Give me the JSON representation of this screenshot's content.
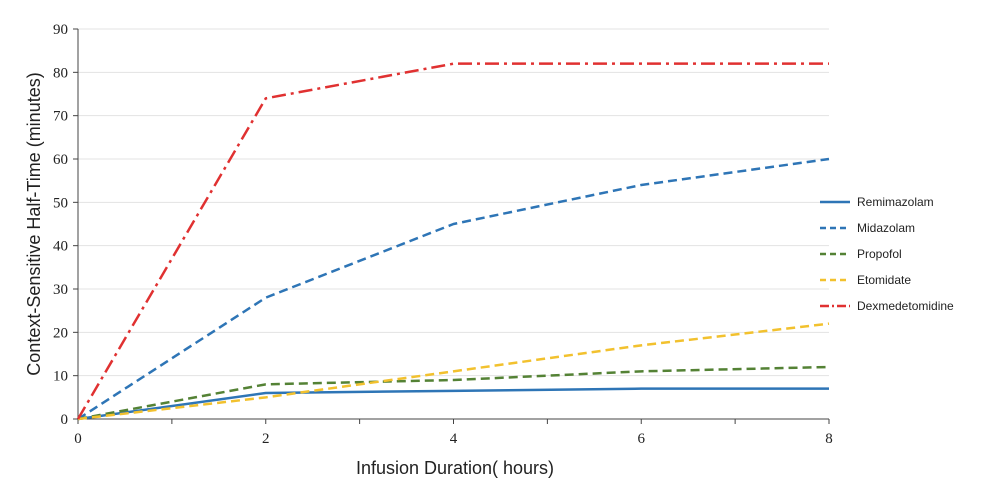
{
  "chart_data": {
    "type": "line",
    "xlabel": "Infusion Duration( hours)",
    "ylabel": "Context-Sensitive Half-Time (minutes)",
    "xlim": [
      0,
      8
    ],
    "ylim": [
      0,
      90
    ],
    "x_ticks": [
      0,
      2,
      4,
      6,
      8
    ],
    "y_ticks": [
      0,
      10,
      20,
      30,
      40,
      50,
      60,
      70,
      80,
      90
    ],
    "grid": "horizontal",
    "legend_position": "right",
    "series": [
      {
        "name": "Remimazolam",
        "color": "#2e75b6",
        "style": "solid",
        "x": [
          0,
          2,
          4,
          6,
          8
        ],
        "values": [
          0,
          6,
          6.5,
          7,
          7
        ]
      },
      {
        "name": "Midazolam",
        "color": "#2e75b6",
        "style": "dashed",
        "x": [
          0,
          2,
          4,
          6,
          8
        ],
        "values": [
          0,
          28,
          45,
          54,
          60
        ]
      },
      {
        "name": "Propofol",
        "color": "#548235",
        "style": "dashed",
        "x": [
          0,
          2,
          4,
          6,
          8
        ],
        "values": [
          0,
          8,
          9,
          11,
          12
        ]
      },
      {
        "name": "Etomidate",
        "color": "#f2c12e",
        "style": "dashed",
        "x": [
          0,
          2,
          4,
          6,
          8
        ],
        "values": [
          0,
          5,
          11,
          17,
          22
        ]
      },
      {
        "name": "Dexmedetomidine",
        "color": "#e03131",
        "style": "dashdot",
        "x": [
          0,
          2,
          4,
          6,
          8
        ],
        "values": [
          0,
          74,
          82,
          82,
          82
        ]
      }
    ]
  }
}
